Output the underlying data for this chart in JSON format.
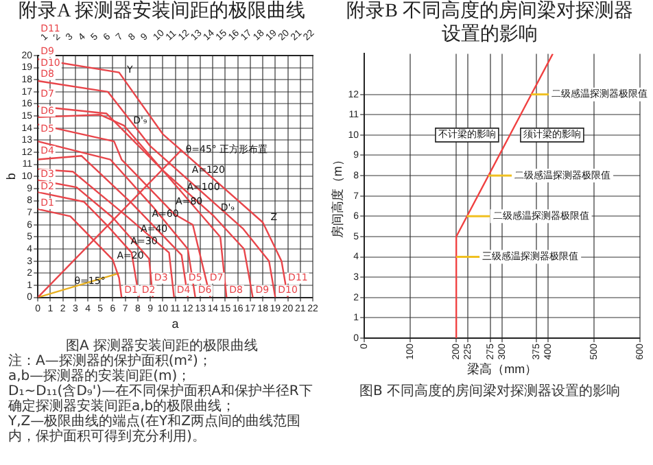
{
  "chart_data": [
    {
      "type": "line",
      "title": "附录A  探测器安装间距的极限曲线",
      "xlabel": "a",
      "ylabel": "b",
      "xlim": [
        0,
        22
      ],
      "xticks": [
        0,
        1,
        2,
        3,
        4,
        5,
        6,
        7,
        8,
        9,
        10,
        11,
        12,
        13,
        14,
        15,
        16,
        17,
        18,
        19,
        20,
        21,
        22
      ],
      "x2lim": [
        0,
        22
      ],
      "x2ticks": [
        1,
        2,
        3,
        4,
        5,
        6,
        7,
        8,
        9,
        10,
        11,
        12,
        13,
        14,
        15,
        16,
        17,
        18,
        19,
        20,
        21,
        22
      ],
      "ylim": [
        0,
        20
      ],
      "yticks": [
        0,
        1,
        2,
        3,
        4,
        5,
        6,
        7,
        8,
        9,
        10,
        11,
        12,
        13,
        14,
        15,
        16,
        17,
        18,
        19,
        20
      ],
      "grid": true,
      "legend": false,
      "marker": "none",
      "line_style": "solid",
      "series": [
        {
          "name": "D1",
          "color": "#e8454a",
          "x": [
            0,
            2.6,
            6.0,
            6.5,
            6.7
          ],
          "values": [
            7.3,
            6.7,
            3.1,
            1.6,
            0
          ]
        },
        {
          "name": "D2",
          "color": "#e8454a",
          "x": [
            0,
            3.7,
            5.5,
            7.5,
            8.1
          ],
          "values": [
            8.7,
            7.9,
            6.0,
            3.7,
            0
          ]
        },
        {
          "name": "D3",
          "color": "#e8454a",
          "x": [
            0,
            3.1,
            6.0,
            8.9,
            9.2
          ],
          "values": [
            9.7,
            9.1,
            6.6,
            3.2,
            0
          ]
        },
        {
          "name": "D4",
          "color": "#e8454a",
          "x": [
            0,
            2.8,
            7.0,
            10.5,
            10.9
          ],
          "values": [
            10.6,
            10.4,
            6.8,
            3.7,
            0
          ]
        },
        {
          "name": "D5",
          "color": "#e8454a",
          "x": [
            0,
            3.5,
            7.5,
            11.5,
            12.0
          ],
          "values": [
            11.4,
            11.7,
            7.8,
            3.5,
            0
          ]
        },
        {
          "name": "D6",
          "color": "#e8454a",
          "x": [
            0,
            5.8,
            9.2,
            12.0,
            12.6
          ],
          "values": [
            12.9,
            11.4,
            7.5,
            4.0,
            0
          ]
        },
        {
          "name": "D7",
          "color": "#e8454a",
          "x": [
            0,
            6.1,
            6.7,
            10.9,
            12.4,
            13.8
          ],
          "values": [
            14.3,
            12.9,
            11.4,
            6.9,
            6.0,
            0
          ]
        },
        {
          "name": "D8",
          "color": "#e8454a",
          "x": [
            0,
            5.0,
            6.9,
            14.6,
            15.1
          ],
          "values": [
            14.9,
            15.1,
            14.2,
            5.0,
            0
          ]
        },
        {
          "name": "D9",
          "color": "#e8454a",
          "x": [
            0,
            5.5,
            10.0,
            14.1,
            16.5,
            17.2
          ],
          "values": [
            15.8,
            15.2,
            10.5,
            6.7,
            4.0,
            0
          ]
        },
        {
          "name": "D10",
          "color": "#e8454a",
          "x": [
            0,
            5.6,
            9.0,
            16.4,
            18.5,
            19.0
          ],
          "values": [
            17.9,
            17.0,
            12.5,
            5.7,
            3.0,
            0
          ]
        },
        {
          "name": "D11",
          "color": "#e8454a",
          "x": [
            0,
            6.5,
            10.0,
            18.0,
            19.5,
            20.0
          ],
          "values": [
            19.7,
            18.6,
            13.5,
            6.2,
            3.0,
            0
          ]
        },
        {
          "color": "#e8454a",
          "x": [
            0,
            11.5
          ],
          "values": [
            0,
            12.2
          ]
        },
        {
          "color": "#e8b020",
          "x": [
            0,
            6.5
          ],
          "values": [
            0,
            2.0
          ]
        }
      ],
      "annotations": [
        {
          "text": "Y",
          "x": 6.8,
          "y": 18.8
        },
        {
          "text": "Z",
          "x": 18.3,
          "y": 6.6
        },
        {
          "text": "D'₉",
          "x": 7.3,
          "y": 14.6
        },
        {
          "text": "D'₉",
          "x": 14.3,
          "y": 7.4
        },
        {
          "text": "A=20",
          "x": 6.0,
          "y": 3.4
        },
        {
          "text": "A=30",
          "x": 7.1,
          "y": 4.6
        },
        {
          "text": "A=40",
          "x": 7.9,
          "y": 5.6
        },
        {
          "text": "A=60",
          "x": 8.8,
          "y": 6.9
        },
        {
          "text": "A=80",
          "x": 10.7,
          "y": 7.9
        },
        {
          "text": "A=100",
          "x": 11.6,
          "y": 9.1
        },
        {
          "text": "A=120",
          "x": 12.0,
          "y": 10.5
        },
        {
          "text": "θ=45° 正方形布置",
          "x": 11.5,
          "y": 12.2
        },
        {
          "text": "θ=15°",
          "x": 2.6,
          "y": 1.3
        },
        "图A  探测器安装间距的极限曲线",
        "注：A—探测器的保护面积(m²)；",
        "a,b—探测器的安装间距(m)；",
        "D₁~D₁₁(含D₉')—在不同保护面积A和保护半径R下确定探测器安装间距a,b的极限曲线；",
        "Y,Z—极限曲线的端点(在Y和Z两点间的曲线范围内，保护面积可得到充分利用)。"
      ]
    },
    {
      "type": "line",
      "title": "附录B  不同高度的房间梁对探测器设置的影响",
      "xlabel": "梁高（mm）",
      "ylabel": "房间高度（m）",
      "xlim": [
        0,
        600
      ],
      "xticks": [
        0,
        100,
        200,
        225,
        275,
        300,
        375,
        400,
        500,
        600
      ],
      "ylim": [
        0,
        14
      ],
      "yticks": [
        0,
        1,
        2,
        3,
        4,
        5,
        6,
        7,
        8,
        9,
        10,
        11,
        12
      ],
      "grid": true,
      "legend": false,
      "marker": "none",
      "line_style": "solid",
      "series": [
        {
          "color": "#f04040",
          "x": [
            200,
            200,
            410
          ],
          "values": [
            0,
            5,
            14
          ]
        }
      ],
      "annotations": [
        {
          "text": "不计梁的影响",
          "x": 316,
          "y": 10
        },
        {
          "text": "须计梁的影响",
          "x": 316,
          "y": 10
        },
        {
          "text": "二级感温探测器极限值",
          "x": 363,
          "y": 12
        },
        {
          "text": "二级感温探测器极限值",
          "x": 270,
          "y": 8
        },
        {
          "text": "二级感温探测器极限值",
          "x": 223,
          "y": 6
        },
        {
          "text": "三级感温探测器极限值",
          "x": 200,
          "y": 4
        },
        "图B  不同高度的房间梁对探测器设置的影响"
      ]
    }
  ]
}
